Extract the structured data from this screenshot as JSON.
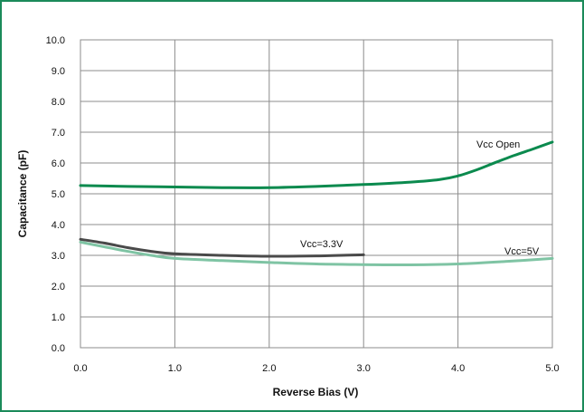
{
  "colors": {
    "frame": "#1b8a5a",
    "grid": "#8c8c8c",
    "vcc_open": "#0b8a4e",
    "vcc_3v3": "#4a4a4a",
    "vcc_5v": "#7fc4a4"
  },
  "chart_data": {
    "type": "line",
    "title": "",
    "xlabel": "Reverse Bias (V)",
    "ylabel": "Capacitance (pF)",
    "xlim": [
      0,
      5
    ],
    "ylim": [
      0,
      10
    ],
    "x_ticks": [
      "0.0",
      "1.0",
      "2.0",
      "3.0",
      "4.0",
      "5.0"
    ],
    "y_ticks": [
      "0.0",
      "1.0",
      "2.0",
      "3.0",
      "4.0",
      "5.0",
      "6.0",
      "7.0",
      "8.0",
      "9.0",
      "10.0"
    ],
    "grid": true,
    "legend": "none",
    "series": [
      {
        "key": "vcc_open",
        "name": "Vcc Open",
        "x": [
          0.0,
          0.5,
          1.0,
          1.5,
          2.0,
          2.5,
          3.0,
          3.5,
          3.8,
          4.0,
          4.2,
          4.4,
          4.6,
          4.8,
          5.0
        ],
        "y": [
          5.27,
          5.24,
          5.22,
          5.2,
          5.2,
          5.24,
          5.3,
          5.38,
          5.46,
          5.58,
          5.78,
          6.02,
          6.25,
          6.46,
          6.68
        ]
      },
      {
        "key": "vcc_3v3",
        "name": "Vcc=3.3V",
        "x": [
          0.0,
          0.25,
          0.5,
          0.75,
          1.0,
          1.5,
          2.0,
          2.5,
          3.0
        ],
        "y": [
          3.52,
          3.4,
          3.25,
          3.13,
          3.05,
          3.0,
          2.97,
          2.98,
          3.02
        ]
      },
      {
        "key": "vcc_5v",
        "name": "Vcc=5V",
        "x": [
          0.0,
          0.25,
          0.5,
          0.75,
          1.0,
          1.5,
          2.0,
          2.5,
          3.0,
          3.5,
          4.0,
          4.5,
          5.0
        ],
        "y": [
          3.43,
          3.28,
          3.13,
          3.0,
          2.9,
          2.83,
          2.77,
          2.72,
          2.7,
          2.69,
          2.72,
          2.8,
          2.9
        ]
      }
    ]
  }
}
